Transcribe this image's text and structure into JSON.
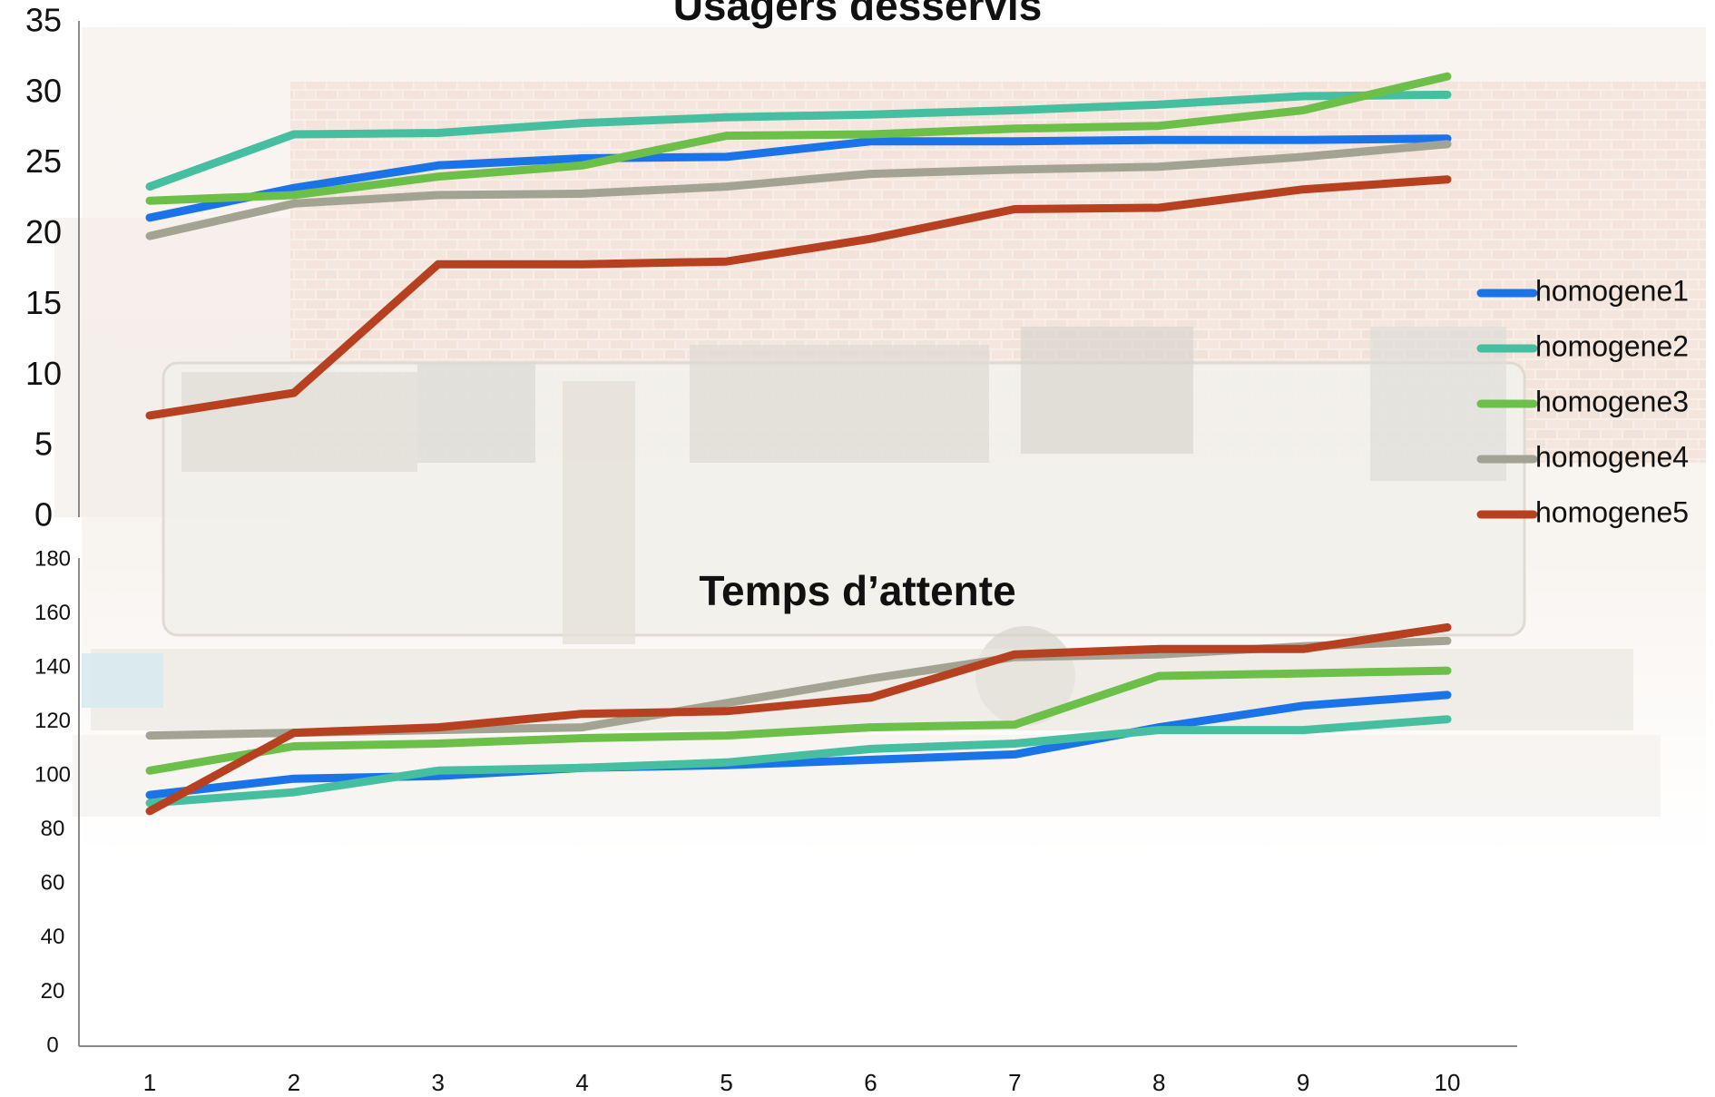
{
  "chart_data": [
    {
      "type": "line",
      "title": "Usagers desservis",
      "xlabel": "",
      "ylabel": "",
      "x": [
        1,
        2,
        3,
        4,
        5,
        6,
        7,
        8,
        9,
        10
      ],
      "ylim": [
        0,
        35
      ],
      "yticks": [
        "0",
        "5",
        "10",
        "15",
        "20",
        "25",
        "30",
        "35"
      ],
      "series": [
        {
          "name": "homogene1",
          "color": "#1a73e8",
          "values": [
            21.2,
            23.3,
            24.9,
            25.4,
            25.5,
            26.6,
            26.6,
            26.7,
            26.7,
            26.8
          ]
        },
        {
          "name": "homogene2",
          "color": "#46bfa0",
          "values": [
            23.4,
            27.1,
            27.2,
            27.9,
            28.3,
            28.5,
            28.8,
            29.2,
            29.8,
            29.9
          ]
        },
        {
          "name": "homogene3",
          "color": "#6cc04a",
          "values": [
            22.4,
            22.8,
            24.1,
            24.9,
            27.0,
            27.1,
            27.5,
            27.7,
            28.8,
            31.2
          ]
        },
        {
          "name": "homogene4",
          "color": "#a3a394",
          "values": [
            19.9,
            22.2,
            22.8,
            22.9,
            23.4,
            24.3,
            24.6,
            24.8,
            25.5,
            26.4
          ]
        },
        {
          "name": "homogene5",
          "color": "#b6401f",
          "values": [
            7.2,
            8.8,
            17.9,
            17.9,
            18.1,
            19.7,
            21.8,
            21.9,
            23.2,
            23.9
          ]
        }
      ],
      "legend": "right"
    },
    {
      "type": "line",
      "title": "Temps d’attente",
      "xlabel": "",
      "ylabel": "",
      "x": [
        1,
        2,
        3,
        4,
        5,
        6,
        7,
        8,
        9,
        10
      ],
      "xticks": [
        "1",
        "2",
        "3",
        "4",
        "5",
        "6",
        "7",
        "8",
        "9",
        "10"
      ],
      "ylim": [
        0,
        180
      ],
      "yticks": [
        "0",
        "20",
        "40",
        "60",
        "80",
        "100",
        "120",
        "140",
        "160",
        "180"
      ],
      "series": [
        {
          "color": "#1a73e8",
          "values": [
            93,
            99,
            100,
            103,
            104,
            106,
            108,
            118,
            126,
            130
          ]
        },
        {
          "color": "#46bfa0",
          "values": [
            90,
            94,
            102,
            103,
            105,
            110,
            112,
            117,
            117,
            121
          ]
        },
        {
          "color": "#6cc04a",
          "values": [
            102,
            111,
            112,
            114,
            115,
            118,
            119,
            137,
            138,
            139
          ]
        },
        {
          "color": "#a3a394",
          "values": [
            115,
            116,
            117,
            118,
            127,
            136,
            144,
            145,
            148,
            150
          ]
        },
        {
          "color": "#b6401f",
          "values": [
            87,
            116,
            118,
            123,
            124,
            129,
            145,
            147,
            147,
            155
          ]
        }
      ]
    }
  ]
}
